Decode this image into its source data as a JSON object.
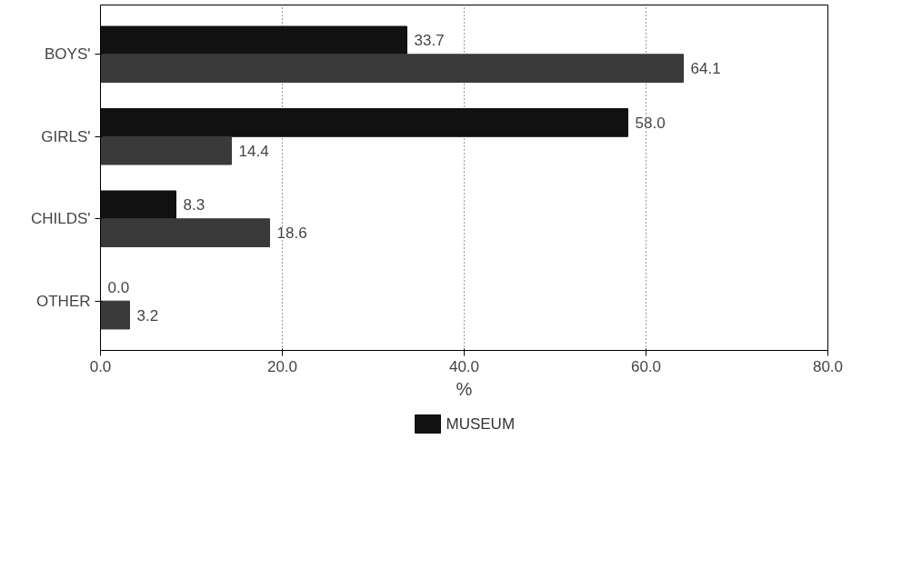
{
  "chart_data": {
    "type": "bar",
    "orientation": "horizontal",
    "xlabel": "%",
    "categories": [
      "BOYS'",
      "GIRLS'",
      "CHILDS'",
      "OTHER"
    ],
    "series": [
      {
        "name": "MUSEUM",
        "color": "#111111",
        "values": [
          33.7,
          58.0,
          8.3,
          0.0
        ],
        "value_labels": [
          "33.7",
          "58.0",
          "8.3",
          "0.0"
        ]
      },
      {
        "color": "#3a3a3a",
        "values": [
          64.1,
          14.4,
          18.6,
          3.2
        ],
        "value_labels": [
          "64.1",
          "14.4",
          "18.6",
          "3.2"
        ]
      }
    ],
    "xlim": [
      0,
      80
    ],
    "xticks": [
      {
        "value": 0,
        "label": "0.0"
      },
      {
        "value": 20,
        "label": "20.0"
      },
      {
        "value": 40,
        "label": "40.0"
      },
      {
        "value": 60,
        "label": "60.0"
      },
      {
        "value": 80,
        "label": "80.0"
      }
    ],
    "grid": "x",
    "legend": "bottom"
  }
}
